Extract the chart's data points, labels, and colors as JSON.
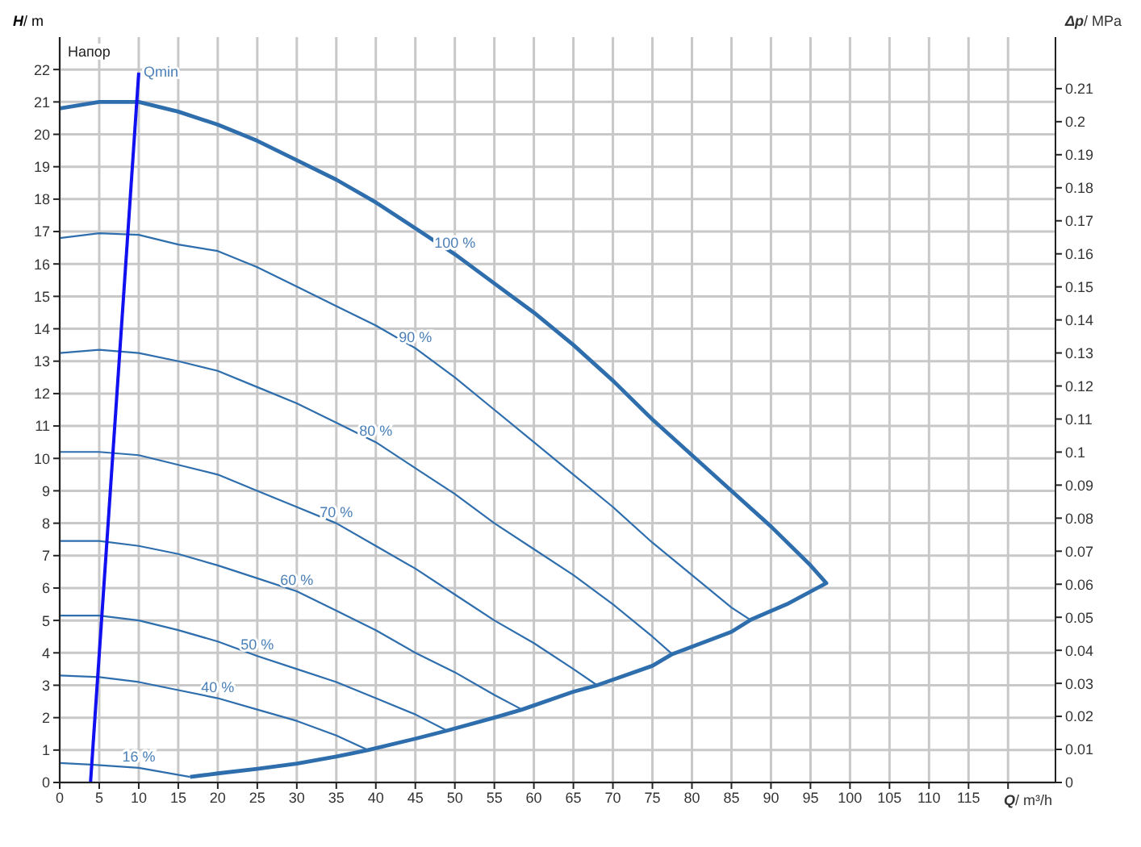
{
  "chart_data": {
    "type": "line",
    "xlabel": "Q/ m³/h",
    "ylabel": "H/ m",
    "y2label": "Δp/ MPa",
    "annotations": [
      "Напор"
    ],
    "xlim": [
      0,
      126
    ],
    "xticks": [
      0,
      5,
      10,
      15,
      20,
      25,
      30,
      35,
      40,
      45,
      50,
      55,
      60,
      65,
      70,
      75,
      80,
      85,
      90,
      95,
      100,
      105,
      110,
      115,
      {
        "value": 120,
        "label": null
      }
    ],
    "ylim": [
      0,
      23
    ],
    "yticks": [
      0,
      1,
      2,
      3,
      4,
      5,
      6,
      7,
      8,
      9,
      10,
      11,
      12,
      13,
      14,
      15,
      16,
      17,
      18,
      19,
      20,
      21,
      22
    ],
    "y2lim": [
      0,
      0.2256
    ],
    "y2ticks": [
      0,
      0.01,
      0.02,
      0.03,
      0.04,
      0.05,
      0.06,
      0.07,
      0.08,
      0.09,
      0.1,
      0.11,
      0.12,
      0.13,
      0.14,
      0.15,
      0.16,
      0.17,
      0.18,
      0.19,
      0.2,
      0.21
    ],
    "grid": true,
    "marker": "none",
    "line_style": "solid",
    "series": [
      {
        "name": "100 %",
        "color": "#2f6ead",
        "x": [
          0,
          5,
          10,
          15,
          20,
          25,
          30,
          35,
          40,
          45,
          50,
          55,
          60,
          65,
          70,
          75,
          80,
          85,
          90,
          95,
          97,
          92,
          87.5,
          85,
          77.5,
          75,
          68,
          65,
          58.5,
          55,
          49,
          45,
          39,
          35,
          30,
          25,
          20,
          16.5
        ],
        "values": [
          20.8,
          21.0,
          21.0,
          20.7,
          20.3,
          19.8,
          19.2,
          18.6,
          17.9,
          17.1,
          16.3,
          15.4,
          14.5,
          13.5,
          12.4,
          11.2,
          10.1,
          9.0,
          7.9,
          6.7,
          6.15,
          5.5,
          5.03,
          4.65,
          3.96,
          3.6,
          3.0,
          2.8,
          2.25,
          2.0,
          1.6,
          1.35,
          1.0,
          0.8,
          0.58,
          0.42,
          0.28,
          0.17
        ]
      },
      {
        "name": "90 %",
        "color": "#2f6ead",
        "x": [
          0,
          5,
          10,
          15,
          20,
          25,
          30,
          35,
          40,
          45,
          50,
          55,
          60,
          65,
          70,
          75,
          80,
          85,
          87.5
        ],
        "values": [
          16.8,
          16.95,
          16.9,
          16.6,
          16.4,
          15.9,
          15.3,
          14.7,
          14.1,
          13.4,
          12.5,
          11.5,
          10.5,
          9.5,
          8.5,
          7.4,
          6.4,
          5.4,
          5.0
        ]
      },
      {
        "name": "80 %",
        "color": "#2f6ead",
        "x": [
          0,
          5,
          10,
          15,
          20,
          25,
          30,
          35,
          40,
          45,
          50,
          55,
          60,
          65,
          70,
          75,
          77.5
        ],
        "values": [
          13.25,
          13.35,
          13.25,
          13.0,
          12.7,
          12.2,
          11.7,
          11.1,
          10.5,
          9.7,
          8.9,
          8.0,
          7.2,
          6.4,
          5.5,
          4.5,
          3.96
        ]
      },
      {
        "name": "70 %",
        "color": "#2f6ead",
        "x": [
          0,
          5,
          10,
          15,
          20,
          25,
          30,
          35,
          40,
          45,
          50,
          55,
          60,
          65,
          68
        ],
        "values": [
          10.2,
          10.2,
          10.1,
          9.8,
          9.5,
          9.0,
          8.5,
          8.0,
          7.3,
          6.6,
          5.8,
          5.0,
          4.3,
          3.5,
          3.0
        ]
      },
      {
        "name": "60 %",
        "color": "#2f6ead",
        "x": [
          0,
          5,
          10,
          15,
          20,
          25,
          30,
          35,
          40,
          45,
          50,
          55,
          58.5
        ],
        "values": [
          7.45,
          7.45,
          7.3,
          7.05,
          6.7,
          6.3,
          5.9,
          5.3,
          4.7,
          4.0,
          3.4,
          2.7,
          2.25
        ]
      },
      {
        "name": "50 %",
        "color": "#2f6ead",
        "x": [
          0,
          5,
          10,
          15,
          20,
          25,
          30,
          35,
          40,
          45,
          49
        ],
        "values": [
          5.15,
          5.15,
          5.0,
          4.7,
          4.35,
          3.9,
          3.5,
          3.1,
          2.6,
          2.1,
          1.6
        ]
      },
      {
        "name": "40 %",
        "color": "#2f6ead",
        "x": [
          0,
          5,
          10,
          15,
          20,
          25,
          30,
          35,
          39
        ],
        "values": [
          3.3,
          3.25,
          3.1,
          2.85,
          2.6,
          2.25,
          1.9,
          1.45,
          1.0
        ]
      },
      {
        "name": "16 %",
        "color": "#2f6ead",
        "x": [
          0,
          4,
          10,
          16.5
        ],
        "values": [
          0.6,
          0.55,
          0.45,
          0.17
        ]
      },
      {
        "name": "Qmin",
        "color": "#1010f0",
        "x": [
          3.9,
          10
        ],
        "values": [
          0,
          21.9
        ]
      }
    ]
  }
}
